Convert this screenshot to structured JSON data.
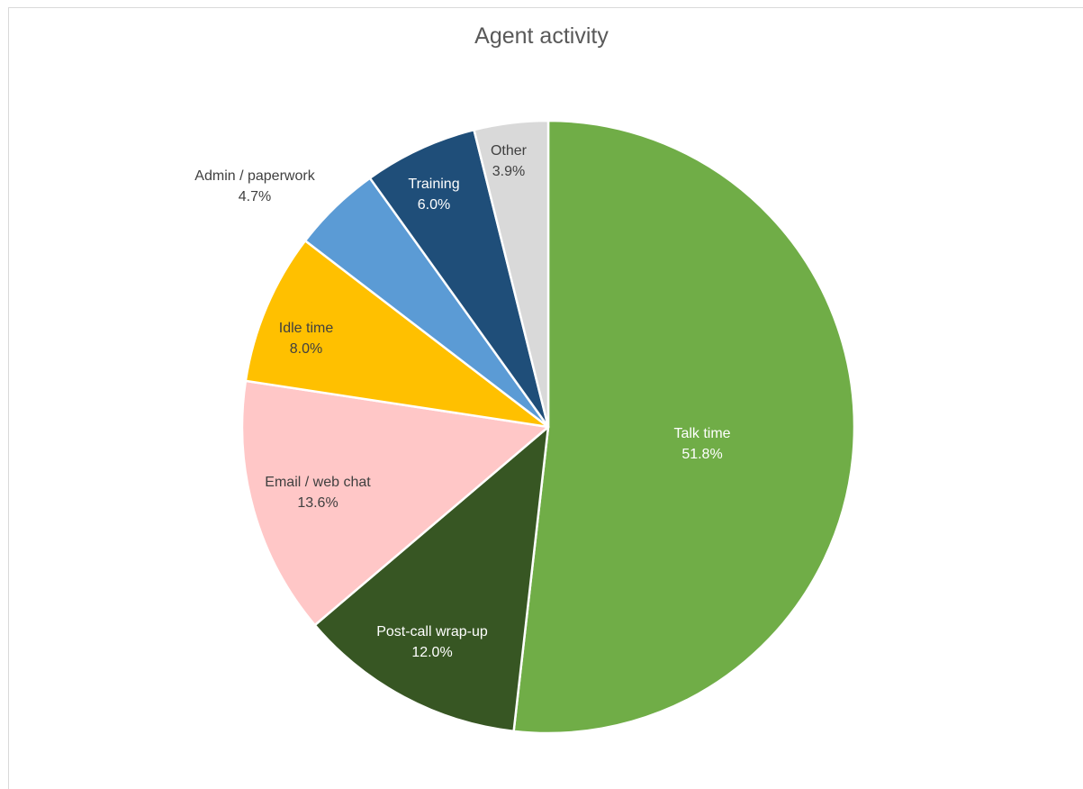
{
  "chart_data": {
    "type": "pie",
    "title": "Agent activity",
    "slices": [
      {
        "label": "Talk time",
        "value": 51.8,
        "display": "51.8%",
        "color": "#70ad47",
        "text_color": "#ffffff"
      },
      {
        "label": "Post-call wrap-up",
        "value": 12.0,
        "display": "12.0%",
        "color": "#375623",
        "text_color": "#ffffff"
      },
      {
        "label": "Email / web chat",
        "value": 13.6,
        "display": "13.6%",
        "color": "#ffc7c7",
        "text_color": "#404040"
      },
      {
        "label": "Idle time",
        "value": 8.0,
        "display": "8.0%",
        "color": "#ffc000",
        "text_color": "#404040"
      },
      {
        "label": "Admin / paperwork",
        "value": 4.7,
        "display": "4.7%",
        "color": "#5b9bd5",
        "text_color": "#404040"
      },
      {
        "label": "Training",
        "value": 6.0,
        "display": "6.0%",
        "color": "#1f4e79",
        "text_color": "#ffffff"
      },
      {
        "label": "Other",
        "value": 3.9,
        "display": "3.9%",
        "color": "#d9d9d9",
        "text_color": "#404040"
      }
    ],
    "start_angle": "12 o'clock",
    "direction": "clockwise",
    "legend": "none",
    "slice_border_color": "#ffffff"
  }
}
